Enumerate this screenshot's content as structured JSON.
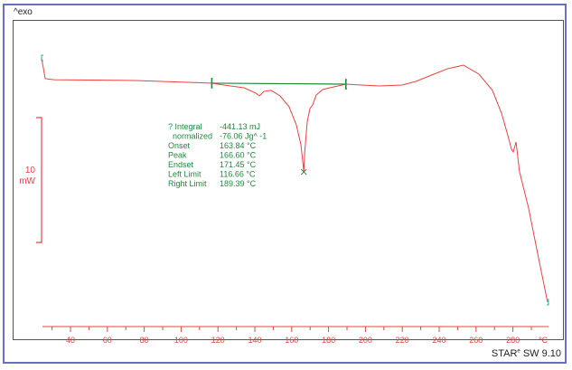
{
  "chart_data": {
    "type": "line",
    "title": "",
    "exo_label": "^exo",
    "xlabel": "°C",
    "xlim": [
      14.7,
      300.5
    ],
    "xticks": [
      40,
      60,
      80,
      100,
      120,
      140,
      160,
      180,
      200,
      220,
      240,
      260,
      280
    ],
    "x_unit": "°C",
    "scale_bar": {
      "value": "10",
      "unit": "mW"
    },
    "ylim": [
      -20.7,
      4.9
    ],
    "grid": false,
    "series": [
      {
        "color": "#f04040",
        "x": [
          24.3,
          26.3,
          31.2,
          75.3,
          116.0,
          134.1,
          140.5,
          142.5,
          144.9,
          148.8,
          153.7,
          158.6,
          162.5,
          165.0,
          166.6,
          167.0,
          168.4,
          169.9,
          171.4,
          173.3,
          176.8,
          180.7,
          189.4,
          197.8,
          207.6,
          219.9,
          227.3,
          237.1,
          244.4,
          253.2,
          261.6,
          268.9,
          273.8,
          277.3,
          279.2,
          280.2,
          281.7,
          283.6,
          288.5,
          293.4,
          297.4,
          298.8
        ],
        "y": [
          1.88,
          0.22,
          0.14,
          0.07,
          -0.14,
          -0.51,
          -0.94,
          -1.16,
          -0.8,
          -0.72,
          -1.16,
          -2.03,
          -3.48,
          -5.07,
          -7.25,
          -5.8,
          -3.26,
          -2.17,
          -1.88,
          -1.09,
          -0.65,
          -0.51,
          -0.22,
          -0.29,
          -0.36,
          -0.29,
          0,
          0.58,
          1.01,
          1.3,
          0.58,
          -0.72,
          -2.54,
          -4.35,
          -5.43,
          -5.65,
          -4.86,
          -7.25,
          -10.14,
          -13.77,
          -16.67,
          -17.68
        ]
      }
    ],
    "baseline": {
      "color": "#1e8a3a",
      "from": [
        116.66,
        -0.14
      ],
      "to": [
        189.39,
        -0.22
      ]
    },
    "peak_marker": [
      166.6,
      -7.25
    ],
    "results": [
      {
        "label": "? Integral",
        "value": "-441.13 mJ"
      },
      {
        "label": "  normalized",
        "value": "-76.06 Jg^ -1"
      },
      {
        "label": "Onset",
        "value": "163.84 °C"
      },
      {
        "label": "Peak",
        "value": "166.60 °C"
      },
      {
        "label": "Endset",
        "value": "171.45 °C"
      },
      {
        "label": "Left Limit",
        "value": "116.66 °C"
      },
      {
        "label": "Right Limit",
        "value": "189.39 °C"
      }
    ]
  },
  "footer": {
    "brand": "STAR",
    "reg": "e",
    "version": "SW 9.10"
  }
}
